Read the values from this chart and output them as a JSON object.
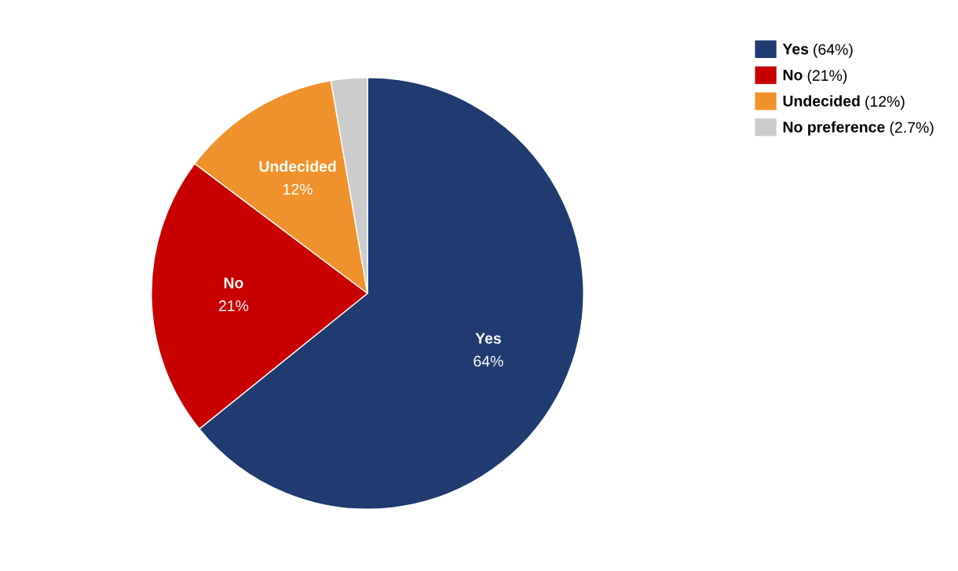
{
  "chart_data": {
    "type": "pie",
    "categories": [
      "Yes",
      "No",
      "Undecided",
      "No preference"
    ],
    "values": [
      64,
      21,
      12,
      2.7
    ],
    "colors": [
      "#1f3b70",
      "#c80000",
      "#f0922b",
      "#cccccc"
    ],
    "value_labels": [
      "64%",
      "21%",
      "12%",
      null
    ],
    "annotations": [
      "(64%)",
      "(21%)",
      "(12%)",
      "(2.7%)"
    ],
    "legend": "top right"
  }
}
